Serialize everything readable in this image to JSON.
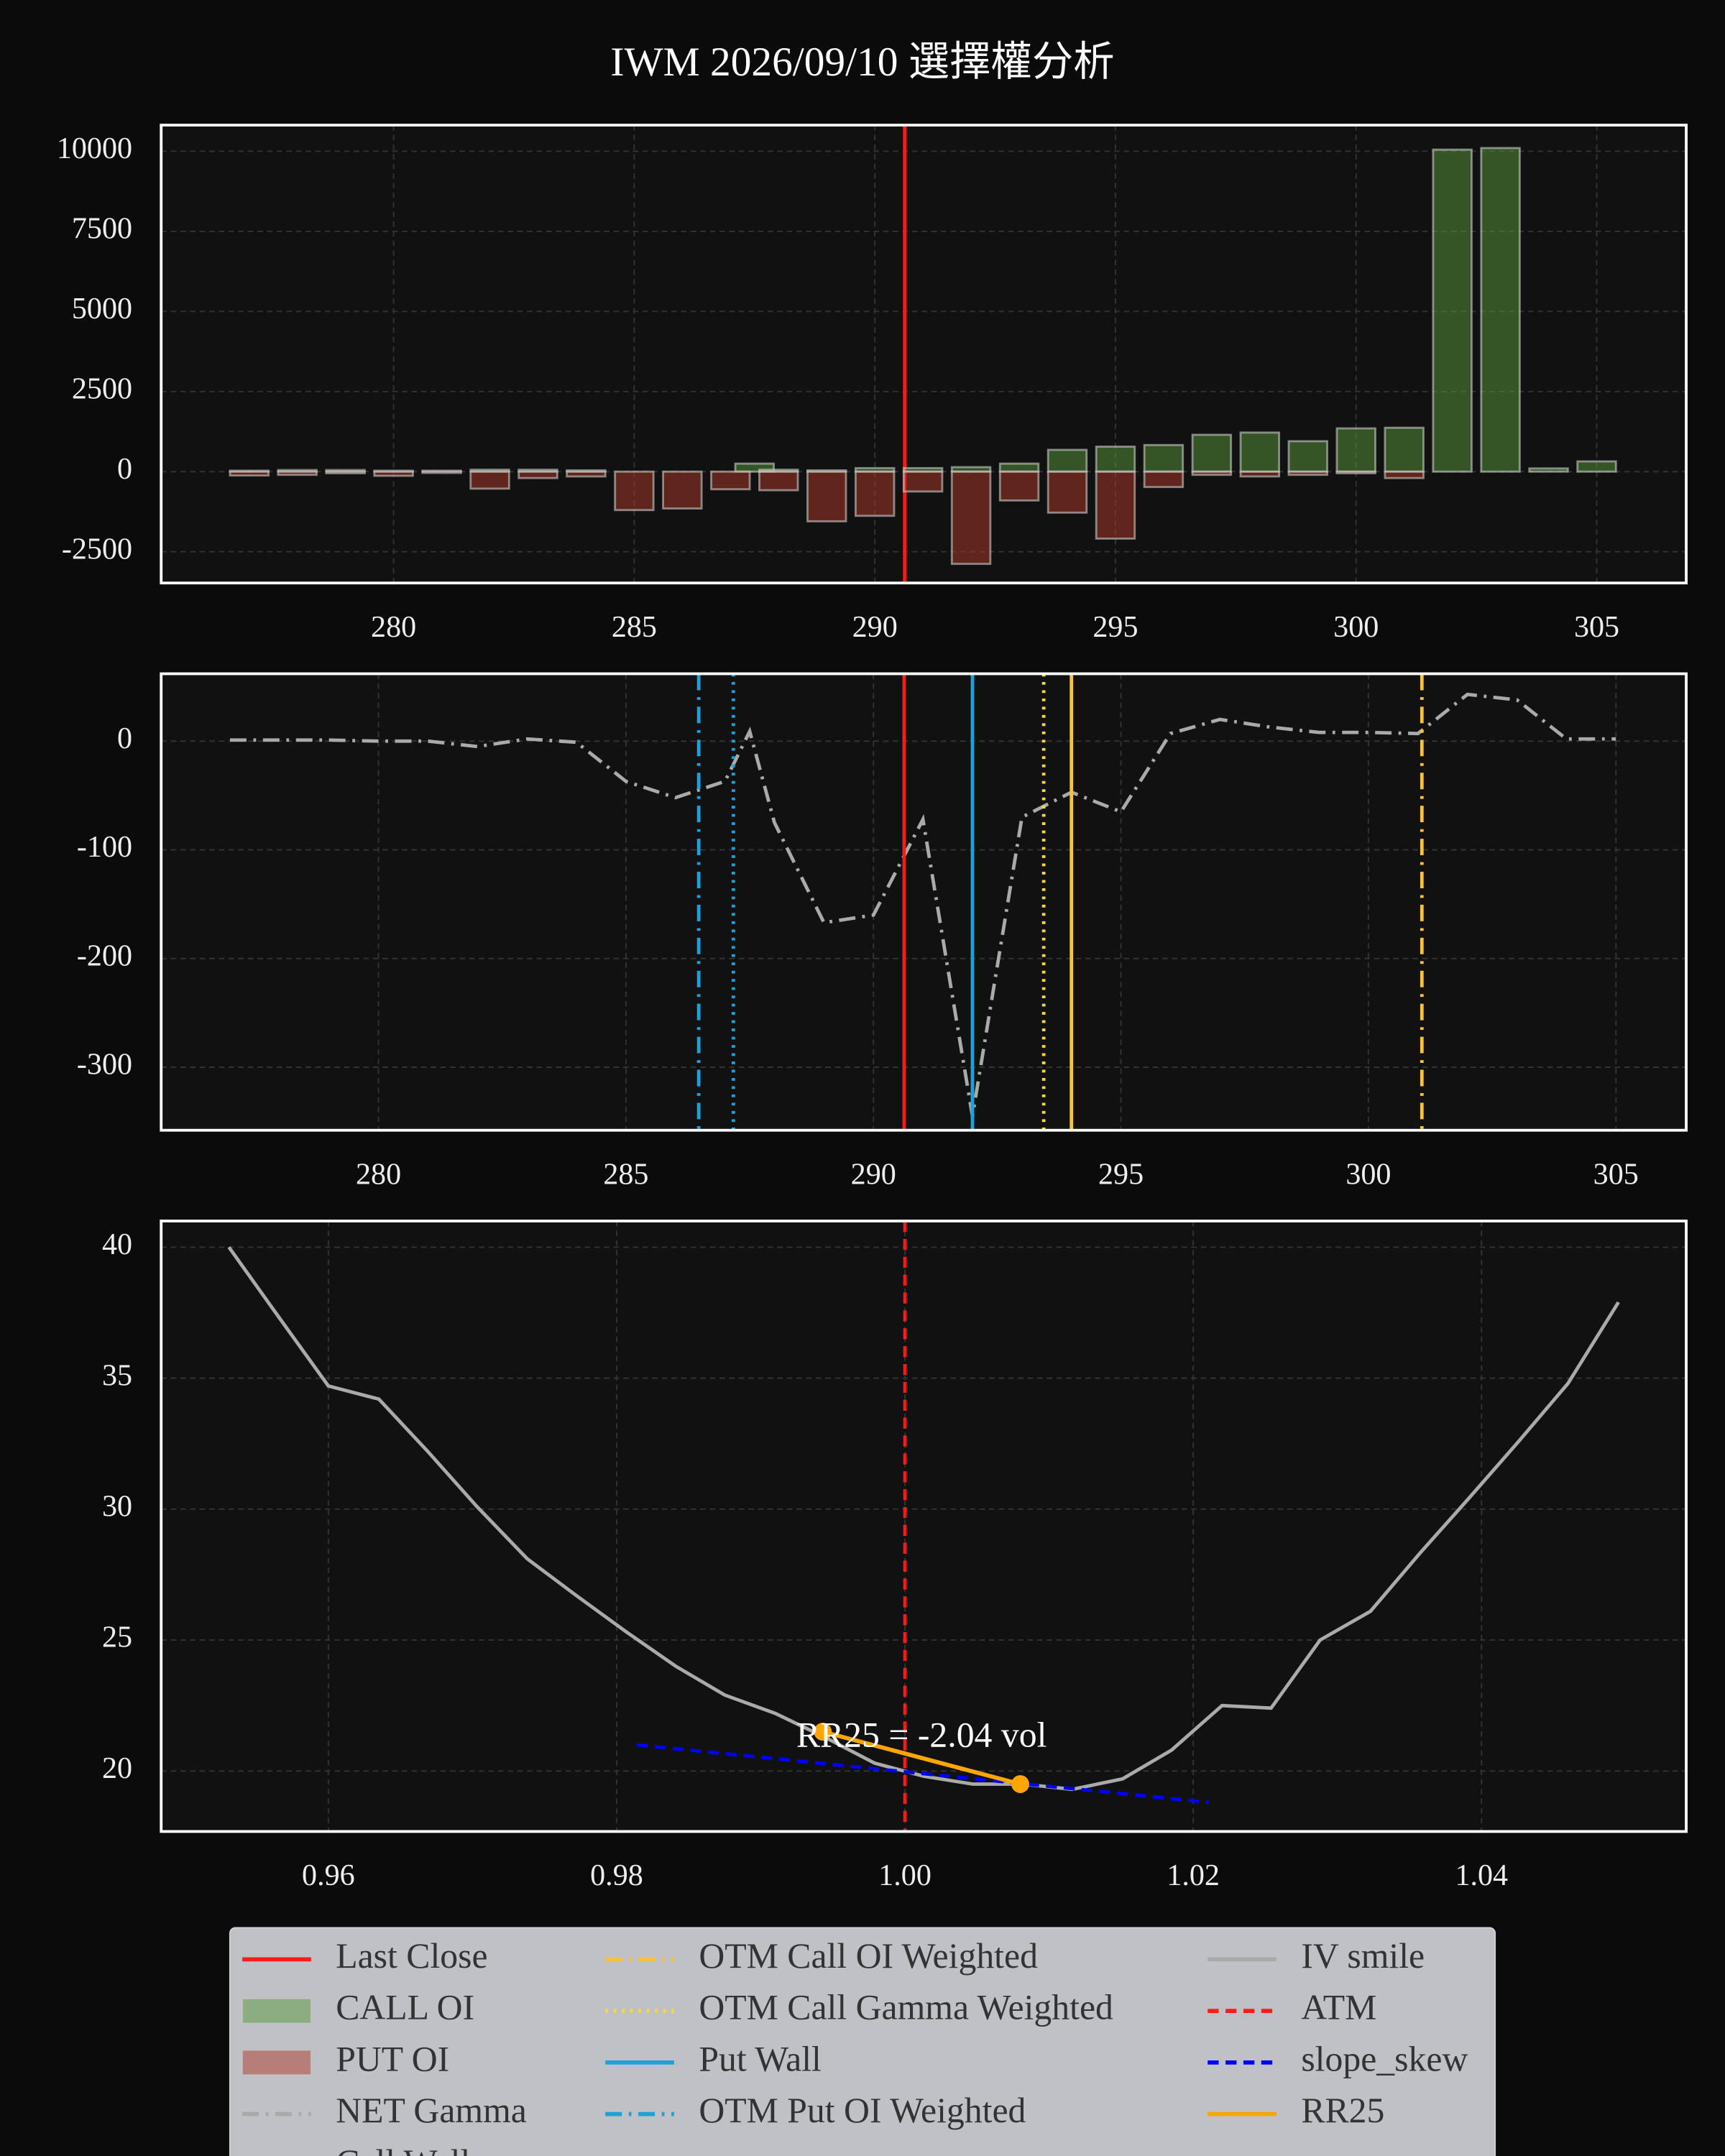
{
  "title": "IWM 2026/09/10 選擇權分析",
  "chart_data": [
    {
      "type": "bar",
      "xlim": [
        275.17,
        306.86
      ],
      "ylim": [
        -3476,
        10815
      ],
      "xticks": [
        280,
        285,
        290,
        295,
        300,
        305
      ],
      "yticks": [
        -2500,
        0,
        2500,
        5000,
        7500,
        10000
      ],
      "grid": true,
      "layers": [
        {
          "kind": "vline",
          "name": "Last Close",
          "value": 290.62,
          "color": "#ff1a1a",
          "style": "solid"
        },
        {
          "kind": "bar",
          "name": "CALL OI",
          "color": "#5a9a3c",
          "x": [
            277,
            278,
            279,
            280,
            281,
            282,
            283,
            284,
            285,
            286,
            287,
            287.5,
            288,
            289,
            290,
            291,
            292,
            293,
            294,
            295,
            296,
            297,
            298,
            299,
            300,
            301,
            302,
            303,
            304,
            305
          ],
          "values": [
            30,
            50,
            50,
            30,
            30,
            60,
            60,
            40,
            0,
            0,
            0,
            250,
            60,
            40,
            110,
            110,
            140,
            250,
            680,
            780,
            830,
            1150,
            1220,
            950,
            1350,
            1370,
            10050,
            10100,
            100,
            320
          ]
        },
        {
          "kind": "bar",
          "name": "PUT OI",
          "color": "#b03a2a",
          "x": [
            277,
            278,
            279,
            280,
            281,
            282,
            283,
            284,
            285,
            286,
            287,
            287.5,
            288,
            289,
            290,
            291,
            292,
            293,
            294,
            295,
            296,
            297,
            298,
            299,
            300,
            301,
            302,
            303,
            304,
            305
          ],
          "values": [
            -120,
            -100,
            -50,
            -130,
            -40,
            -530,
            -200,
            -150,
            -1200,
            -1150,
            -550,
            0,
            -580,
            -1550,
            -1380,
            -620,
            -2880,
            -900,
            -1280,
            -2090,
            -480,
            -100,
            -150,
            -100,
            -50,
            -200,
            0,
            0,
            0,
            0
          ]
        }
      ]
    },
    {
      "type": "line",
      "xlim": [
        275.61,
        306.42
      ],
      "ylim": [
        -358,
        62
      ],
      "xticks": [
        280,
        285,
        290,
        295,
        300,
        305
      ],
      "yticks": [
        -300,
        -200,
        -100,
        0
      ],
      "grid": true,
      "layers": [
        {
          "kind": "line",
          "name": "NET Gamma",
          "color": "#aaaaaa",
          "style": "dashdot",
          "x": [
            277,
            278,
            279,
            280,
            281,
            282,
            283,
            284,
            285,
            286,
            287,
            287.5,
            288,
            289,
            290,
            291,
            292,
            293,
            294,
            295,
            296,
            297,
            298,
            299,
            300,
            301,
            302,
            303,
            304,
            305
          ],
          "values": [
            1,
            1,
            1,
            0,
            0,
            -5,
            2,
            -1,
            -37,
            -52,
            -37,
            9,
            -75,
            -167,
            -160,
            -72,
            -345,
            -70,
            -47,
            -65,
            7,
            20,
            13,
            8,
            8,
            7,
            43,
            38,
            2,
            2
          ]
        },
        {
          "kind": "vline",
          "name": "Call Wall",
          "value": 294,
          "color": "#f5c242",
          "style": "solid"
        },
        {
          "kind": "vline",
          "name": "OTM Call OI Weighted",
          "value": 301.08,
          "color": "#f5c242",
          "style": "dashdot"
        },
        {
          "kind": "vline",
          "name": "OTM Call Gamma Weighted",
          "value": 293.44,
          "color": "#f5d742",
          "style": "dotted"
        },
        {
          "kind": "vline",
          "name": "Put Wall",
          "value": 292,
          "color": "#1fa0d8",
          "style": "solid"
        },
        {
          "kind": "vline",
          "name": "OTM Put OI Weighted",
          "value": 286.47,
          "color": "#1fa0d8",
          "style": "dashdot"
        },
        {
          "kind": "vline",
          "value": 287.17,
          "color": "#1fa0d8",
          "style": "dotted"
        },
        {
          "kind": "vline",
          "value": 290.62,
          "color": "#ff1a1a",
          "style": "solid"
        }
      ]
    },
    {
      "type": "line",
      "xlim": [
        0.9484,
        1.0542
      ],
      "ylim": [
        17.69,
        41.0
      ],
      "xticks": [
        0.96,
        0.98,
        {
          "value": 1,
          "label": "1.00"
        },
        1.02,
        1.04
      ],
      "yticks": [
        20,
        25,
        30,
        35,
        40
      ],
      "grid": true,
      "annotation": "RR25 = -2.04 vol",
      "layers": [
        {
          "kind": "line",
          "name": "IV smile",
          "color": "#aaaaaa",
          "style": "solid",
          "x": [
            0.9531,
            0.9566,
            0.96,
            0.9635,
            0.9669,
            0.9703,
            0.9738,
            0.9772,
            0.9807,
            0.9841,
            0.9875,
            0.991,
            0.9944,
            0.9979,
            1.0013,
            1.0047,
            1.0082,
            1.0116,
            1.0151,
            1.0185,
            1.022,
            1.0254,
            1.0288,
            1.0323,
            1.0357,
            1.0391,
            1.0426,
            1.046,
            1.0495
          ],
          "values": [
            40.0,
            37.3,
            34.7,
            34.2,
            32.2,
            30.1,
            28.1,
            26.7,
            25.3,
            24.0,
            22.9,
            22.2,
            21.3,
            20.3,
            19.8,
            19.5,
            19.5,
            19.3,
            19.7,
            20.8,
            22.5,
            22.4,
            25.0,
            26.1,
            28.3,
            30.4,
            32.6,
            34.8,
            37.9
          ]
        },
        {
          "kind": "vline",
          "name": "ATM",
          "value": 1,
          "color": "#ff1a1a",
          "style": "dashed"
        },
        {
          "kind": "line",
          "name": "slope_skew",
          "color": "#0000ff",
          "style": "dashed",
          "x": [
            0.9814,
            1.0211
          ],
          "values": [
            21.0,
            18.8
          ]
        },
        {
          "kind": "line",
          "name": "RR25",
          "color": "#ffa500",
          "style": "solid",
          "markers": true,
          "x": [
            0.9943,
            1.008
          ],
          "values": [
            21.5,
            19.5
          ]
        }
      ]
    }
  ]
}
